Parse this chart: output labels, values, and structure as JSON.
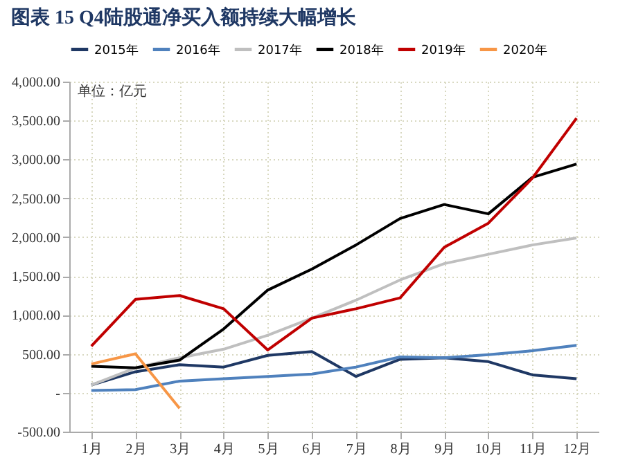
{
  "chart_data": {
    "type": "line",
    "title": "图表 15  Q4陆股通净买入额持续大幅增长",
    "categories": [
      "1月",
      "2月",
      "3月",
      "4月",
      "5月",
      "6月",
      "7月",
      "8月",
      "9月",
      "10月",
      "11月",
      "12月"
    ],
    "series": [
      {
        "name": "2015年",
        "color": "#1f3864",
        "values": [
          100,
          270,
          360,
          330,
          480,
          530,
          210,
          430,
          450,
          400,
          230,
          180
        ]
      },
      {
        "name": "2016年",
        "color": "#4f81bd",
        "values": [
          30,
          40,
          150,
          180,
          210,
          240,
          330,
          460,
          450,
          490,
          540,
          610
        ]
      },
      {
        "name": "2017年",
        "color": "#bfbfbf",
        "values": [
          100,
          320,
          450,
          560,
          740,
          960,
          1190,
          1450,
          1660,
          1780,
          1900,
          1990
        ]
      },
      {
        "name": "2018年",
        "color": "#000000",
        "values": [
          340,
          320,
          420,
          820,
          1320,
          1590,
          1900,
          2240,
          2420,
          2300,
          2770,
          2940
        ]
      },
      {
        "name": "2019年",
        "color": "#c00000",
        "values": [
          600,
          1200,
          1250,
          1080,
          550,
          960,
          1080,
          1220,
          1870,
          2180,
          2760,
          3530
        ]
      },
      {
        "name": "2020年",
        "color": "#f79646",
        "values": [
          370,
          500,
          -200,
          null,
          null,
          null,
          null,
          null,
          null,
          null,
          null,
          null
        ]
      }
    ],
    "ylim": [
      -500,
      4000
    ],
    "yticks": [
      {
        "value": -500,
        "label": "-500.00"
      },
      {
        "value": 0,
        "label": "-"
      },
      {
        "value": 500,
        "label": "500.00"
      },
      {
        "value": 1000,
        "label": "1,000.00"
      },
      {
        "value": 1500,
        "label": "1,500.00"
      },
      {
        "value": 2000,
        "label": "2,000.00"
      },
      {
        "value": 2500,
        "label": "2,500.00"
      },
      {
        "value": 3000,
        "label": "3,000.00"
      },
      {
        "value": 3500,
        "label": "3,500.00"
      },
      {
        "value": 4000,
        "label": "4,000.00"
      }
    ],
    "annotations": [
      "单位：亿元"
    ],
    "grid": true,
    "legend": "top",
    "marker": "none",
    "line_style": "solid"
  }
}
